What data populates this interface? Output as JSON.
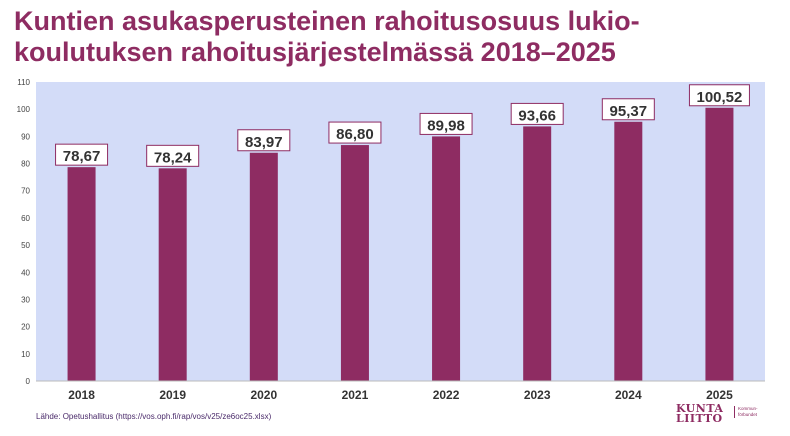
{
  "title_lines": [
    "Kuntien asukasperusteinen rahoitusosuus lukio-",
    "koulutuksen rahoitusjärjestelmässä 2018–2025"
  ],
  "source": "Lähde: Opetushallitus (https://vos.oph.fi/rap/vos/v25/ze6oc25.xlsx)",
  "logo": {
    "main_lines": [
      "KUNTA",
      "LIITTO"
    ],
    "sub_lines": [
      "Kommun-",
      "förbundet"
    ]
  },
  "colors": {
    "bar": "#8e2c62",
    "plot_background": "#d3dcf8",
    "label_border": "#8e2c62",
    "title": "#8e2c62"
  },
  "chart_data": {
    "type": "bar",
    "categories": [
      "2018",
      "2019",
      "2020",
      "2021",
      "2022",
      "2023",
      "2024",
      "2025"
    ],
    "values": [
      78.67,
      78.24,
      83.97,
      86.8,
      89.98,
      93.66,
      95.37,
      100.52
    ],
    "value_labels": [
      "78,67",
      "78,24",
      "83,97",
      "86,80",
      "89,98",
      "93,66",
      "95,37",
      "100,52"
    ],
    "ylim": [
      0,
      110
    ],
    "yticks": [
      0,
      10,
      20,
      30,
      40,
      50,
      60,
      70,
      80,
      90,
      100,
      110
    ],
    "grid": false,
    "legend": "none"
  }
}
